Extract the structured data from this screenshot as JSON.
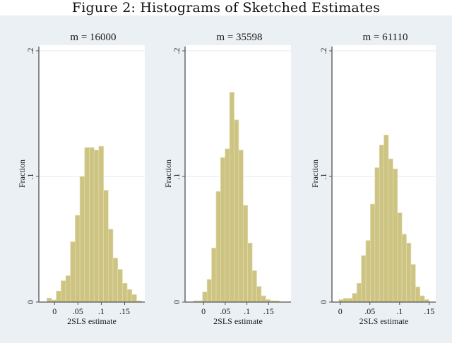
{
  "figure": {
    "title": "Figure 2:   Histograms of Sketched Estimates",
    "background": "#eaf0f3",
    "plot_background": "#ffffff",
    "bar_fill": "#cdc483",
    "bar_stroke": "#e2dcab",
    "grid_color": "#e1eaee",
    "axis_color": "#555555"
  },
  "chart_data": [
    {
      "type": "bar",
      "title": "m = 16000",
      "xlabel": "2SLS estimate",
      "ylabel": "Fraction",
      "ylim": [
        0,
        0.2
      ],
      "xlim": [
        -0.032,
        0.193
      ],
      "yticks": [
        0,
        0.1,
        0.2
      ],
      "ytick_labels": [
        "0",
        ".1",
        ".2"
      ],
      "xticks": [
        0,
        0.05,
        0.1,
        0.15
      ],
      "xtick_labels": [
        "0",
        ".05",
        ".1",
        ".15"
      ],
      "grid": true,
      "bin_start": -0.0164,
      "bin_width": 0.0101,
      "values": [
        0.0032,
        0.0017,
        0.0088,
        0.017,
        0.021,
        0.048,
        0.069,
        0.1,
        0.123,
        0.123,
        0.121,
        0.124,
        0.089,
        0.058,
        0.035,
        0.026,
        0.015,
        0.01,
        0.006,
        0.001
      ]
    },
    {
      "type": "bar",
      "title": "m = 35598",
      "xlabel": "2SLS estimate",
      "ylabel": "Fraction",
      "ylim": [
        0,
        0.2
      ],
      "xlim": [
        -0.041,
        0.2016
      ],
      "yticks": [
        0,
        0.1,
        0.2
      ],
      "ytick_labels": [
        "0",
        ".1",
        ".2"
      ],
      "xticks": [
        0,
        0.05,
        0.1,
        0.15
      ],
      "xtick_labels": [
        "0",
        ".05",
        ".1",
        ".15"
      ],
      "grid": true,
      "bin_start": -0.023,
      "bin_width": 0.0104,
      "values": [
        0.001,
        0.001,
        0.008,
        0.018,
        0.043,
        0.088,
        0.115,
        0.122,
        0.167,
        0.145,
        0.121,
        0.077,
        0.047,
        0.025,
        0.0125,
        0.005,
        0.002,
        0.001,
        0.001
      ]
    },
    {
      "type": "bar",
      "title": "m = 61110",
      "xlabel": "2SLS estimate",
      "ylabel": "Fraction",
      "ylim": [
        0,
        0.2
      ],
      "xlim": [
        -0.0128,
        0.161
      ],
      "yticks": [
        0,
        0.1,
        0.2
      ],
      "ytick_labels": [
        "0",
        ".1",
        ".2"
      ],
      "xticks": [
        0,
        0.05,
        0.1,
        0.15
      ],
      "xtick_labels": [
        "0",
        ".05",
        ".1",
        ".15"
      ],
      "grid": true,
      "bin_start": -0.0024,
      "bin_width": 0.0076,
      "values": [
        0.002,
        0.003,
        0.003,
        0.007,
        0.015,
        0.037,
        0.049,
        0.078,
        0.107,
        0.125,
        0.133,
        0.114,
        0.106,
        0.071,
        0.054,
        0.047,
        0.03,
        0.012,
        0.005,
        0.002
      ]
    }
  ]
}
